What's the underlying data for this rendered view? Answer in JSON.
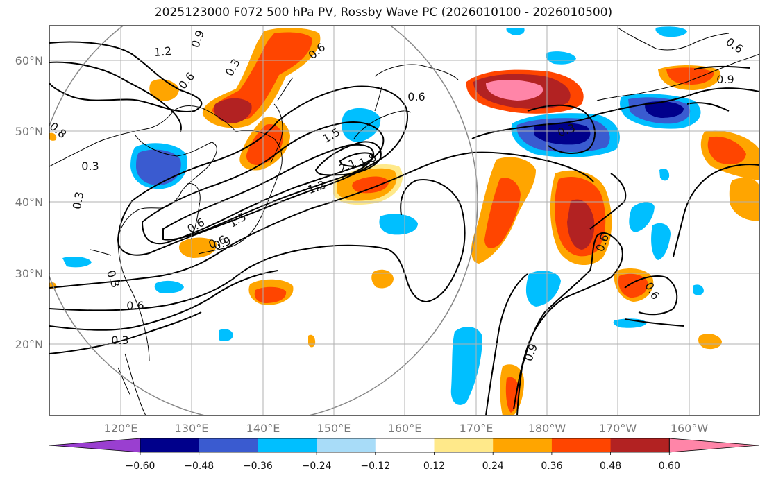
{
  "chart_data": {
    "type": "heatmap",
    "title": "2025123000 F072 500 hPa PV, Rossby Wave PC (2026010100 - 2026010500)",
    "xlabel": "",
    "ylabel": "",
    "lat_ticks": [
      "20°N",
      "30°N",
      "40°N",
      "50°N",
      "60°N"
    ],
    "lon_ticks": [
      "120°E",
      "130°E",
      "140°E",
      "150°E",
      "160°E",
      "170°E",
      "180°W",
      "170°W",
      "160°W"
    ],
    "colorbar": {
      "ticks": [
        "−0.60",
        "−0.48",
        "−0.36",
        "−0.24",
        "−0.12",
        "0.12",
        "0.24",
        "0.36",
        "0.48",
        "0.60"
      ],
      "colors": [
        "#9a3fd0",
        "#00008b",
        "#3a5bd0",
        "#00bfff",
        "#a8dcf8",
        "#ffffff",
        "#ffe98a",
        "#ffa500",
        "#ff4500",
        "#b22222",
        "#ff85a8"
      ]
    },
    "contour_labels": [
      "1.2",
      "0.9",
      "0.3",
      "0.6",
      "0.6",
      "0.3",
      "0.6",
      "1.5",
      "2.1",
      "1.8",
      "1.2",
      "1.5",
      "0.9",
      "0.6",
      "0.3",
      "0.3",
      "0.6",
      "0.3",
      "0.9",
      "0.6",
      "0.6",
      "0.9",
      "0.8",
      "0.6",
      "0.6",
      "0.3"
    ]
  }
}
